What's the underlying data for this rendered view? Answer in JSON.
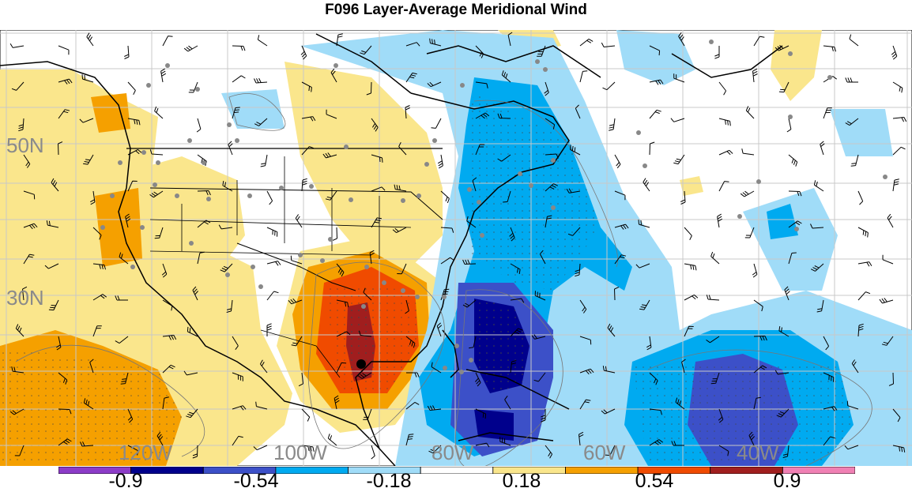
{
  "title": "F096 Layer-Average Meridional Wind",
  "lat_labels": [
    "50N",
    "30N"
  ],
  "lon_labels": [
    "120W",
    "100W",
    "80W",
    "60W",
    "40W"
  ],
  "colorbar": {
    "labels": [
      "-0.9",
      "-0.54",
      "-0.18",
      "0.18",
      "0.54",
      "0.9"
    ],
    "colors": [
      "#8c3cc8",
      "#00008c",
      "#3c50c8",
      "#00aaf0",
      "#a0dcf8",
      "#ffffff",
      "#fae68c",
      "#f5a000",
      "#f04b00",
      "#a01e1e",
      "#f080b4"
    ]
  }
}
